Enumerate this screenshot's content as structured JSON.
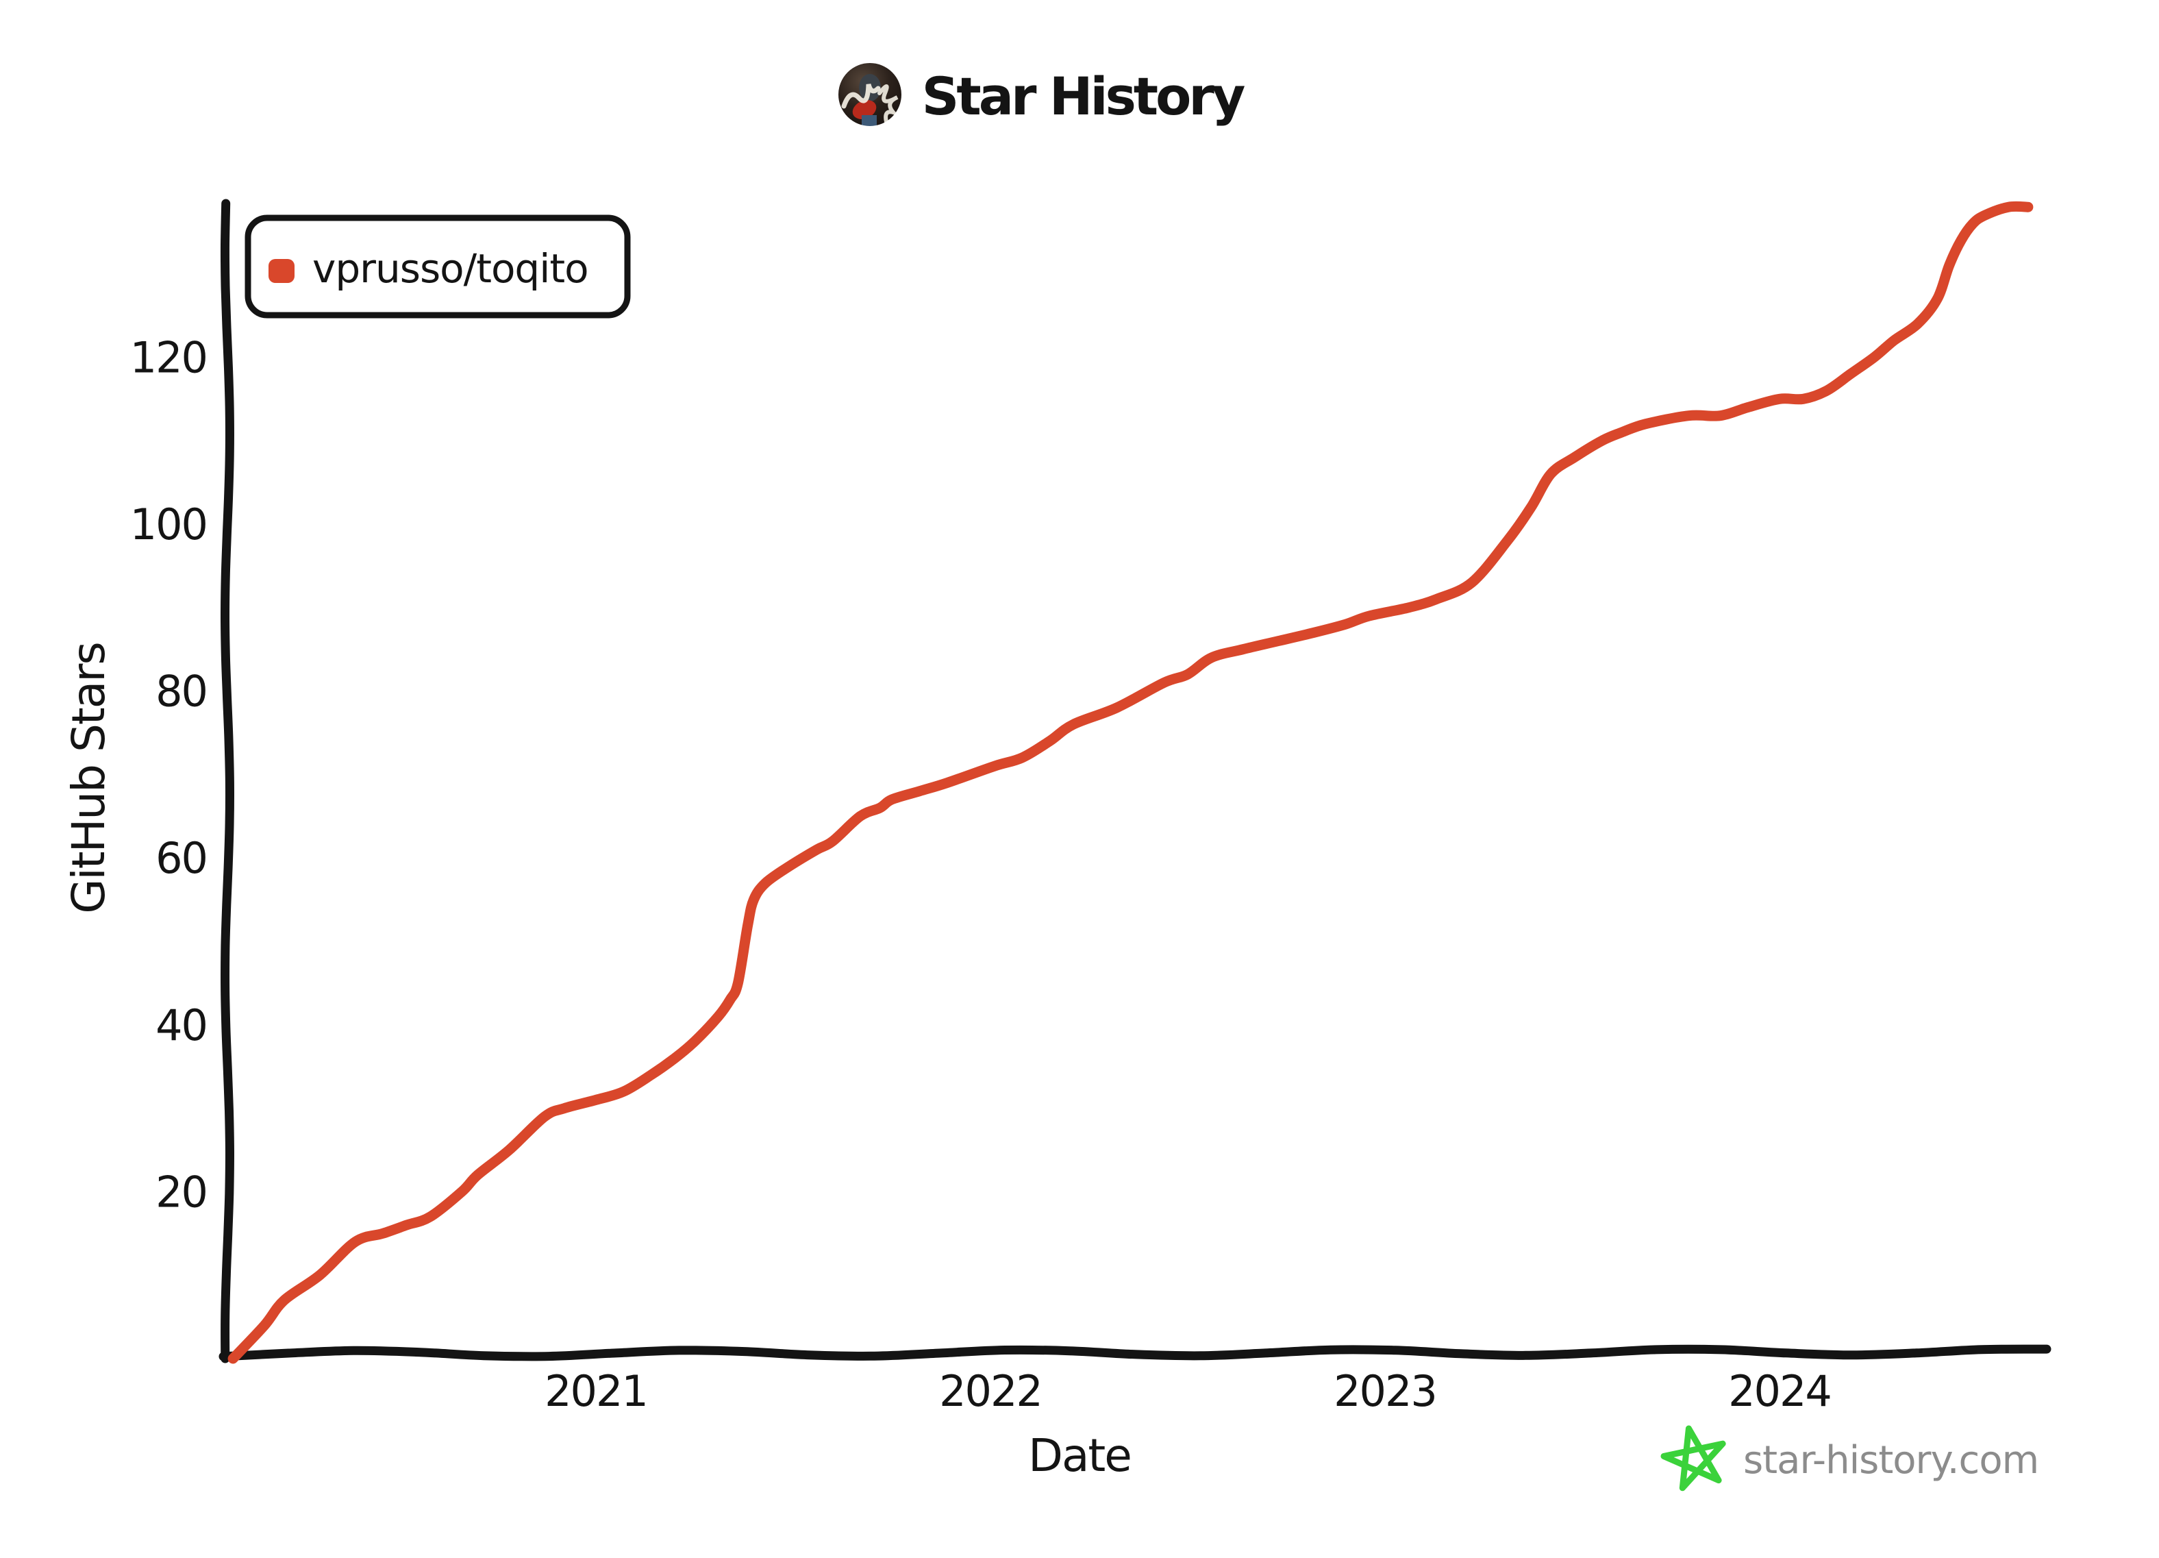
{
  "title": {
    "text": "Star History"
  },
  "legend": {
    "items": [
      {
        "label": "vprusso/toqito",
        "color": "#d9472b"
      }
    ]
  },
  "axes": {
    "x_label": "Date",
    "y_label": "GitHub Stars"
  },
  "watermark": {
    "text": "star-history.com",
    "text_color": "#8c8c8c",
    "star_color": "#3bd23b"
  },
  "colors": {
    "line": "#d9472b",
    "axis": "#141414",
    "background": "#ffffff"
  },
  "chart_data": {
    "type": "line",
    "title": "Star History",
    "xlabel": "Date",
    "ylabel": "GitHub Stars",
    "legend_position": "top-left",
    "grid": false,
    "x_ticks": [
      2021,
      2022,
      2023,
      2024
    ],
    "y_ticks": [
      20,
      40,
      60,
      80,
      100,
      120
    ],
    "x_range": [
      2020.06,
      2024.72
    ],
    "y_range": [
      0,
      145
    ],
    "series": [
      {
        "name": "vprusso/toqito",
        "color": "#d9472b",
        "points": [
          [
            2020.08,
            0
          ],
          [
            2020.16,
            4
          ],
          [
            2020.21,
            7
          ],
          [
            2020.3,
            10
          ],
          [
            2020.39,
            14
          ],
          [
            2020.46,
            15
          ],
          [
            2020.52,
            16
          ],
          [
            2020.58,
            17
          ],
          [
            2020.66,
            20
          ],
          [
            2020.7,
            22
          ],
          [
            2020.78,
            25
          ],
          [
            2020.87,
            29
          ],
          [
            2020.92,
            30
          ],
          [
            2021.0,
            31
          ],
          [
            2021.07,
            32
          ],
          [
            2021.14,
            34
          ],
          [
            2021.2,
            36
          ],
          [
            2021.25,
            38
          ],
          [
            2021.31,
            41
          ],
          [
            2021.34,
            43
          ],
          [
            2021.36,
            45
          ],
          [
            2021.385,
            52
          ],
          [
            2021.4,
            55
          ],
          [
            2021.43,
            57
          ],
          [
            2021.49,
            59
          ],
          [
            2021.56,
            61
          ],
          [
            2021.6,
            62
          ],
          [
            2021.67,
            65
          ],
          [
            2021.72,
            66
          ],
          [
            2021.75,
            67
          ],
          [
            2021.82,
            68
          ],
          [
            2021.89,
            69
          ],
          [
            2022.01,
            71
          ],
          [
            2022.08,
            72
          ],
          [
            2022.15,
            74
          ],
          [
            2022.21,
            76
          ],
          [
            2022.32,
            78
          ],
          [
            2022.44,
            81
          ],
          [
            2022.5,
            82
          ],
          [
            2022.56,
            84
          ],
          [
            2022.64,
            85
          ],
          [
            2022.73,
            86
          ],
          [
            2022.82,
            87
          ],
          [
            2022.9,
            88
          ],
          [
            2022.96,
            89
          ],
          [
            2023.06,
            90
          ],
          [
            2023.13,
            91
          ],
          [
            2023.22,
            93
          ],
          [
            2023.31,
            98
          ],
          [
            2023.37,
            102
          ],
          [
            2023.42,
            106
          ],
          [
            2023.48,
            108
          ],
          [
            2023.55,
            110
          ],
          [
            2023.6,
            111
          ],
          [
            2023.66,
            112
          ],
          [
            2023.77,
            113
          ],
          [
            2023.85,
            113
          ],
          [
            2023.92,
            114
          ],
          [
            2024.0,
            115
          ],
          [
            2024.06,
            115
          ],
          [
            2024.12,
            116
          ],
          [
            2024.18,
            118
          ],
          [
            2024.24,
            120
          ],
          [
            2024.29,
            122
          ],
          [
            2024.35,
            124
          ],
          [
            2024.4,
            127
          ],
          [
            2024.43,
            131
          ],
          [
            2024.46,
            134
          ],
          [
            2024.49,
            136
          ],
          [
            2024.52,
            137
          ],
          [
            2024.58,
            138
          ],
          [
            2024.63,
            138
          ]
        ]
      }
    ]
  }
}
